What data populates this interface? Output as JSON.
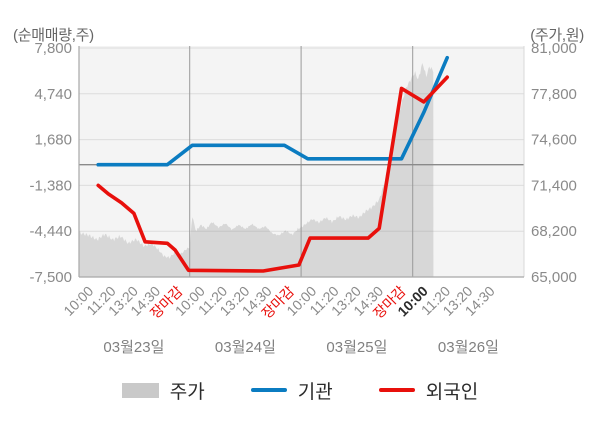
{
  "header": {
    "left_axis_unit": "(순매매량,주)",
    "right_axis_unit": "(주가,원)"
  },
  "legend": {
    "price": "주가",
    "institution": "기관",
    "foreigner": "외국인"
  },
  "colors": {
    "price_area": "#d7d7d7",
    "legend_area_swatch": "#c9c9c9",
    "institution": "#0b7cc1",
    "foreigner": "#e8100c",
    "plot_bg": "#f4f4f4",
    "grid": "rgba(140,140,140,0.22)",
    "zero_line": "#8a8a8a",
    "divider": "#9a9a9a",
    "axis": "#a8a8a8",
    "axis_right": "#d8d8d8",
    "tick_text": "#8a8a8a",
    "close_label_color": "#e8100c",
    "current_label_color": "#2b2b2b",
    "date_text": "#808080"
  },
  "chart_data": {
    "type": "mixed",
    "title": "",
    "grid": true,
    "legend_position": "bottom",
    "left_axis": {
      "unit": "(순매매량,주)",
      "tick_values": [
        7800,
        4740,
        1680,
        -1380,
        -4440,
        -7500
      ],
      "tick_labels": [
        "7,800",
        "4,740",
        "1,680",
        "-1,380",
        "-4,440",
        "-7,500"
      ],
      "range": [
        -7500,
        7800
      ]
    },
    "right_axis": {
      "unit": "(주가,원)",
      "tick_values": [
        81000,
        77800,
        74600,
        71400,
        68200,
        65000
      ],
      "tick_labels": [
        "81,000",
        "77,800",
        "74,600",
        "71,400",
        "68,200",
        "65,000"
      ],
      "range": [
        65000,
        81000
      ]
    },
    "x_axis": {
      "ticks_per_day": 5,
      "day_labels": [
        "03월23일",
        "03월24일",
        "03월25일",
        "03월26일"
      ],
      "time_labels": [
        {
          "label": "10:00",
          "type": "time"
        },
        {
          "label": "11:20",
          "type": "time"
        },
        {
          "label": "13:20",
          "type": "time"
        },
        {
          "label": "14:30",
          "type": "time"
        },
        {
          "label": "장마감",
          "type": "close"
        },
        {
          "label": "10:00",
          "type": "time"
        },
        {
          "label": "11:20",
          "type": "time"
        },
        {
          "label": "13:20",
          "type": "time"
        },
        {
          "label": "14:30",
          "type": "time"
        },
        {
          "label": "장마감",
          "type": "close"
        },
        {
          "label": "10:00",
          "type": "time"
        },
        {
          "label": "11:20",
          "type": "time"
        },
        {
          "label": "13:20",
          "type": "time"
        },
        {
          "label": "14:30",
          "type": "time"
        },
        {
          "label": "장마감",
          "type": "close"
        },
        {
          "label": "10:00",
          "type": "current"
        },
        {
          "label": "11:20",
          "type": "time"
        },
        {
          "label": "13:20",
          "type": "time"
        },
        {
          "label": "14:30",
          "type": "time"
        }
      ]
    },
    "series": [
      {
        "name": "주가",
        "type": "area",
        "axis": "right",
        "jagged": true,
        "points": [
          [
            -0.46,
            68100
          ],
          [
            0,
            67900
          ],
          [
            0.35,
            67600
          ],
          [
            0.7,
            68000
          ],
          [
            1.05,
            67600
          ],
          [
            1.4,
            67850
          ],
          [
            1.75,
            67350
          ],
          [
            2.1,
            67650
          ],
          [
            2.45,
            67150
          ],
          [
            2.8,
            67350
          ],
          [
            3.1,
            66900
          ],
          [
            3.35,
            66450
          ],
          [
            3.6,
            66350
          ],
          [
            3.85,
            66750
          ],
          [
            4.1,
            66600
          ],
          [
            4.35,
            66950
          ],
          [
            4.5,
            67050
          ],
          [
            4.62,
            69300
          ],
          [
            4.78,
            68200
          ],
          [
            5.0,
            68650
          ],
          [
            5.25,
            68350
          ],
          [
            5.5,
            68850
          ],
          [
            5.8,
            68450
          ],
          [
            6.1,
            68750
          ],
          [
            6.4,
            68300
          ],
          [
            6.7,
            68650
          ],
          [
            7.0,
            68350
          ],
          [
            7.3,
            68700
          ],
          [
            7.6,
            68350
          ],
          [
            7.9,
            68550
          ],
          [
            8.2,
            68050
          ],
          [
            8.5,
            67900
          ],
          [
            8.8,
            68250
          ],
          [
            9.1,
            67950
          ],
          [
            9.35,
            68350
          ],
          [
            9.53,
            68500
          ],
          [
            9.7,
            68700
          ],
          [
            10.0,
            69050
          ],
          [
            10.3,
            68800
          ],
          [
            10.6,
            69150
          ],
          [
            10.9,
            68850
          ],
          [
            11.2,
            69250
          ],
          [
            11.5,
            69000
          ],
          [
            11.8,
            69300
          ],
          [
            12.1,
            69150
          ],
          [
            12.4,
            69600
          ],
          [
            12.7,
            69900
          ],
          [
            13.0,
            70400
          ],
          [
            13.2,
            71400
          ],
          [
            13.45,
            73100
          ],
          [
            13.7,
            75000
          ],
          [
            13.95,
            76800
          ],
          [
            14.2,
            78200
          ],
          [
            14.45,
            78900
          ],
          [
            14.6,
            79300
          ],
          [
            14.75,
            78800
          ],
          [
            14.95,
            80000
          ],
          [
            15.1,
            79000
          ],
          [
            15.25,
            79700
          ],
          [
            15.43,
            79400
          ]
        ]
      },
      {
        "name": "기관",
        "type": "line",
        "axis": "left",
        "jagged": false,
        "points": [
          [
            0.4,
            0
          ],
          [
            3.5,
            0
          ],
          [
            4.62,
            1300
          ],
          [
            8.75,
            1300
          ],
          [
            9.8,
            400
          ],
          [
            14.0,
            400
          ],
          [
            15.0,
            3500
          ],
          [
            16.05,
            7150
          ]
        ]
      },
      {
        "name": "외국인",
        "type": "line",
        "axis": "left",
        "jagged": false,
        "points": [
          [
            0.4,
            -1380
          ],
          [
            0.85,
            -1950
          ],
          [
            1.45,
            -2550
          ],
          [
            2.0,
            -3250
          ],
          [
            2.5,
            -5150
          ],
          [
            3.5,
            -5250
          ],
          [
            3.7,
            -5500
          ],
          [
            3.85,
            -5700
          ],
          [
            4.45,
            -7050
          ],
          [
            7.8,
            -7100
          ],
          [
            9.4,
            -6700
          ],
          [
            9.9,
            -4900
          ],
          [
            12.5,
            -4900
          ],
          [
            13.0,
            -4250
          ],
          [
            14.0,
            5100
          ],
          [
            15.0,
            4200
          ],
          [
            16.05,
            5850
          ]
        ]
      }
    ]
  }
}
